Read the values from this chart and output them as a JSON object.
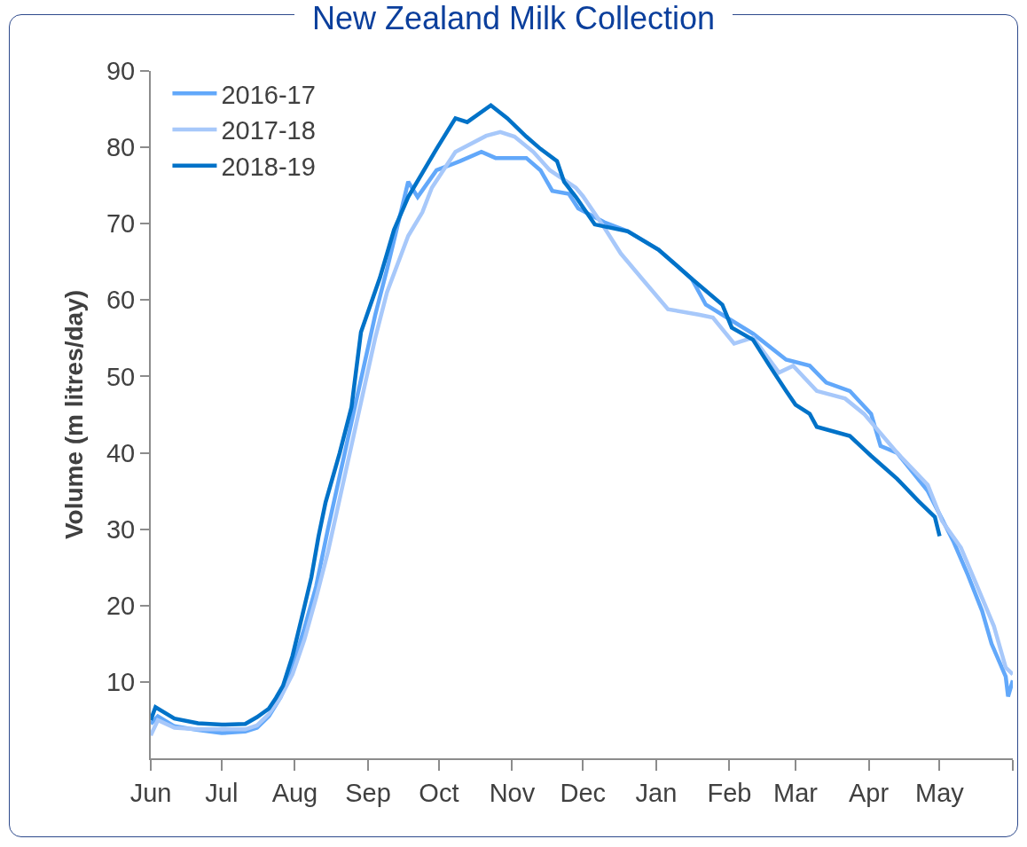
{
  "chart_data": {
    "type": "line",
    "title": "New Zealand Milk Collection",
    "ylabel": "Volume (m litres/day)",
    "xlim": [
      "2018-06-01",
      "2019-06-01"
    ],
    "xticks": [
      {
        "value": "2018-06-01",
        "label": "Jun"
      },
      {
        "value": "2018-07-01",
        "label": "Jul"
      },
      {
        "value": "2018-08-01",
        "label": "Aug"
      },
      {
        "value": "2018-09-01",
        "label": "Sep"
      },
      {
        "value": "2018-10-01",
        "label": "Oct"
      },
      {
        "value": "2018-11-01",
        "label": "Nov"
      },
      {
        "value": "2018-12-01",
        "label": "Dec"
      },
      {
        "value": "2019-01-01",
        "label": "Jan"
      },
      {
        "value": "2019-02-01",
        "label": "Feb"
      },
      {
        "value": "2019-03-01",
        "label": "Mar"
      },
      {
        "value": "2019-04-01",
        "label": "Apr"
      },
      {
        "value": "2019-05-01",
        "label": "May"
      },
      {
        "value": "2019-06-01",
        "label": null
      }
    ],
    "ylim": [
      0,
      90
    ],
    "yticks": [
      10,
      20,
      30,
      40,
      50,
      60,
      70,
      80,
      90
    ],
    "grid": false,
    "legend": "top left",
    "marker": "none",
    "line_style": "solid",
    "series": [
      {
        "name": "2016-17",
        "color": "#62a8fa",
        "x": [
          "2018-06-01",
          "2018-06-04",
          "2018-06-11",
          "2018-06-21",
          "2018-07-01",
          "2018-07-11",
          "2018-07-16",
          "2018-07-21",
          "2018-07-26",
          "2018-07-31",
          "2018-08-05",
          "2018-08-10",
          "2018-08-15",
          "2018-08-20",
          "2018-08-25",
          "2018-08-30",
          "2018-09-04",
          "2018-09-09",
          "2018-09-18",
          "2018-09-22",
          "2018-09-30",
          "2018-10-10",
          "2018-10-19",
          "2018-10-25",
          "2018-11-07",
          "2018-11-13",
          "2018-11-18",
          "2018-11-25",
          "2018-11-29",
          "2018-12-10",
          "2018-12-20",
          "2019-01-02",
          "2019-01-16",
          "2019-01-22",
          "2019-02-11",
          "2019-02-25",
          "2019-03-07",
          "2019-03-14",
          "2019-03-24",
          "2019-04-02",
          "2019-04-06",
          "2019-04-13",
          "2019-04-26",
          "2019-05-07",
          "2019-05-13",
          "2019-05-19",
          "2019-05-23",
          "2019-05-29",
          "2019-05-30",
          "2019-06-01"
        ],
        "values": [
          4.5,
          5.5,
          4.2,
          3.7,
          3.3,
          3.5,
          4.0,
          5.5,
          8,
          12,
          17,
          22.5,
          30,
          37,
          44,
          51,
          58,
          64,
          75.5,
          73.5,
          77,
          78.2,
          79.4,
          78.6,
          78.6,
          77,
          74.3,
          73.9,
          72,
          70.2,
          69,
          66.6,
          62.8,
          59.4,
          55.6,
          52.2,
          51.4,
          49.2,
          48.1,
          45.1,
          40.9,
          40,
          35,
          28.3,
          24,
          19.3,
          15,
          10.7,
          8.1,
          10.2
        ]
      },
      {
        "name": "2017-18",
        "color": "#a7c8fa",
        "x": [
          "2018-06-01",
          "2018-06-04",
          "2018-06-11",
          "2018-06-21",
          "2018-07-01",
          "2018-07-11",
          "2018-07-16",
          "2018-07-21",
          "2018-07-26",
          "2018-07-31",
          "2018-08-05",
          "2018-08-10",
          "2018-08-15",
          "2018-08-20",
          "2018-08-25",
          "2018-08-30",
          "2018-09-04",
          "2018-09-09",
          "2018-09-18",
          "2018-09-24",
          "2018-09-28",
          "2018-10-08",
          "2018-10-21",
          "2018-10-27",
          "2018-11-02",
          "2018-11-10",
          "2018-11-17",
          "2018-11-28",
          "2018-12-01",
          "2018-12-10",
          "2018-12-17",
          "2018-12-26",
          "2019-01-06",
          "2019-01-19",
          "2019-01-25",
          "2019-02-03",
          "2019-02-11",
          "2019-02-22",
          "2019-02-28",
          "2019-03-10",
          "2019-03-22",
          "2019-03-30",
          "2019-04-13",
          "2019-04-26",
          "2019-05-02",
          "2019-05-10",
          "2019-05-16",
          "2019-05-24",
          "2019-05-29",
          "2019-06-01"
        ],
        "values": [
          3.0,
          5.0,
          4.0,
          3.8,
          3.8,
          3.8,
          4.3,
          5.8,
          8,
          11,
          15.5,
          21,
          27,
          34,
          41,
          48,
          55,
          61,
          68.4,
          71.5,
          74.7,
          79.4,
          81.5,
          82,
          81.4,
          79.4,
          77,
          74.7,
          73.6,
          69.5,
          66.1,
          62.8,
          58.8,
          58.1,
          57.7,
          54.3,
          55.1,
          50.5,
          51.4,
          48.1,
          47.1,
          45.1,
          40,
          35.8,
          31.1,
          27.6,
          23.2,
          17.3,
          11.9,
          11
        ]
      },
      {
        "name": "2018-19",
        "color": "#0072c8",
        "x": [
          "2018-06-01",
          "2018-06-03",
          "2018-06-11",
          "2018-06-21",
          "2018-07-01",
          "2018-07-11",
          "2018-07-16",
          "2018-07-21",
          "2018-07-24",
          "2018-07-27",
          "2018-07-31",
          "2018-08-04",
          "2018-08-08",
          "2018-08-11",
          "2018-08-14",
          "2018-08-20",
          "2018-08-25",
          "2018-08-29",
          "2018-09-06",
          "2018-09-12",
          "2018-09-18",
          "2018-09-30",
          "2018-10-08",
          "2018-10-13",
          "2018-10-23",
          "2018-10-30",
          "2018-11-07",
          "2018-11-13",
          "2018-11-20",
          "2018-11-23",
          "2018-11-28",
          "2018-12-06",
          "2018-12-20",
          "2019-01-02",
          "2019-01-16",
          "2019-01-29",
          "2019-02-02",
          "2019-02-11",
          "2019-02-18",
          "2019-02-25",
          "2019-03-01",
          "2019-03-07",
          "2019-03-10",
          "2019-03-24",
          "2019-04-02",
          "2019-04-13",
          "2019-04-22",
          "2019-04-29",
          "2019-05-01"
        ],
        "values": [
          5.0,
          6.7,
          5.2,
          4.6,
          4.4,
          4.5,
          5.4,
          6.5,
          7.9,
          9.5,
          13.4,
          18.5,
          23.7,
          29,
          33.5,
          40,
          46,
          55.8,
          62.9,
          69.2,
          73.5,
          79.8,
          83.8,
          83.3,
          85.5,
          83.8,
          81.4,
          79.8,
          78.2,
          75.5,
          73.5,
          69.9,
          69,
          66.6,
          62.8,
          59.4,
          56.4,
          54.8,
          51.4,
          48.1,
          46.3,
          45.1,
          43.4,
          42.2,
          39.6,
          36.6,
          33.7,
          31.6,
          29.1
        ]
      }
    ]
  }
}
